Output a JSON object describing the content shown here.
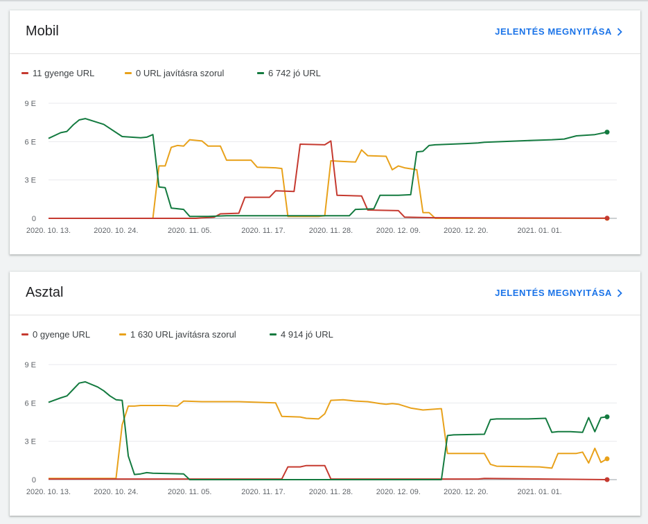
{
  "link_label": "JELENTÉS MEGNYITÁSA",
  "colors": {
    "poor": "#c5392f",
    "needs": "#e8a11a",
    "good": "#137a3f"
  },
  "icons": {
    "link": "chevron-right-icon"
  },
  "charts": [
    {
      "title": "Mobil",
      "legend": [
        {
          "key": "poor",
          "label": "11 gyenge URL"
        },
        {
          "key": "needs",
          "label": "0 URL javításra szorul"
        },
        {
          "key": "good",
          "label": "6 742 jó URL"
        }
      ]
    },
    {
      "title": "Asztal",
      "legend": [
        {
          "key": "poor",
          "label": "0 gyenge URL"
        },
        {
          "key": "needs",
          "label": "1 630 URL javításra szorul"
        },
        {
          "key": "good",
          "label": "4 914 jó URL"
        }
      ]
    }
  ],
  "chart_data": [
    {
      "type": "line",
      "title": "Mobil",
      "x_start": "2020-10-13",
      "x_end": "2021-01-12",
      "x_tick_labels": [
        "2020. 10. 13.",
        "2020. 10. 24.",
        "2020. 11. 05.",
        "2020. 11. 17.",
        "2020. 11. 28.",
        "2020. 12. 09.",
        "2020. 12. 20.",
        "2021. 01. 01."
      ],
      "y_tick_labels": [
        "0",
        "3 E",
        "6 E",
        "9 E"
      ],
      "ylim": [
        0,
        9000
      ],
      "grid": true,
      "legend_position": "top-left",
      "series": [
        {
          "name": "11 gyenge URL",
          "key": "poor",
          "points": [
            [
              "2020-10-13",
              0
            ],
            [
              "2020-10-31",
              0
            ],
            [
              "2020-11-06",
              0
            ],
            [
              "2020-11-09",
              100
            ],
            [
              "2020-11-10",
              350
            ],
            [
              "2020-11-13",
              400
            ],
            [
              "2020-11-14",
              1650
            ],
            [
              "2020-11-18",
              1650
            ],
            [
              "2020-11-19",
              2150
            ],
            [
              "2020-11-22",
              2100
            ],
            [
              "2020-11-23",
              5800
            ],
            [
              "2020-11-27",
              5750
            ],
            [
              "2020-11-28",
              6050
            ],
            [
              "2020-11-29",
              1800
            ],
            [
              "2020-12-03",
              1750
            ],
            [
              "2020-12-04",
              650
            ],
            [
              "2020-12-09",
              600
            ],
            [
              "2020-12-10",
              100
            ],
            [
              "2020-12-15",
              50
            ],
            [
              "2021-01-12",
              11
            ]
          ]
        },
        {
          "name": "0 URL javításra szorul",
          "key": "needs",
          "points": [
            [
              "2020-10-13",
              0
            ],
            [
              "2020-10-30",
              0
            ],
            [
              "2020-10-31",
              4100
            ],
            [
              "2020-11-01",
              4100
            ],
            [
              "2020-11-02",
              5550
            ],
            [
              "2020-11-03",
              5700
            ],
            [
              "2020-11-04",
              5650
            ],
            [
              "2020-11-05",
              6150
            ],
            [
              "2020-11-07",
              6050
            ],
            [
              "2020-11-08",
              5650
            ],
            [
              "2020-11-10",
              5650
            ],
            [
              "2020-11-11",
              4550
            ],
            [
              "2020-11-15",
              4550
            ],
            [
              "2020-11-16",
              4000
            ],
            [
              "2020-11-19",
              3950
            ],
            [
              "2020-11-20",
              3900
            ],
            [
              "2020-11-21",
              150
            ],
            [
              "2020-11-26",
              150
            ],
            [
              "2020-11-27",
              200
            ],
            [
              "2020-11-28",
              4500
            ],
            [
              "2020-12-02",
              4400
            ],
            [
              "2020-12-03",
              5350
            ],
            [
              "2020-12-04",
              4900
            ],
            [
              "2020-12-07",
              4850
            ],
            [
              "2020-12-08",
              3800
            ],
            [
              "2020-12-09",
              4100
            ],
            [
              "2020-12-10",
              3950
            ],
            [
              "2020-12-12",
              3800
            ],
            [
              "2020-12-13",
              450
            ],
            [
              "2020-12-14",
              450
            ],
            [
              "2020-12-15",
              0
            ],
            [
              "2021-01-12",
              0
            ]
          ]
        },
        {
          "name": "6 742 jó URL",
          "key": "good",
          "points": [
            [
              "2020-10-13",
              6250
            ],
            [
              "2020-10-15",
              6700
            ],
            [
              "2020-10-16",
              6800
            ],
            [
              "2020-10-17",
              7300
            ],
            [
              "2020-10-18",
              7700
            ],
            [
              "2020-10-19",
              7800
            ],
            [
              "2020-10-21",
              7500
            ],
            [
              "2020-10-22",
              7350
            ],
            [
              "2020-10-25",
              6400
            ],
            [
              "2020-10-28",
              6300
            ],
            [
              "2020-10-29",
              6350
            ],
            [
              "2020-10-30",
              6550
            ],
            [
              "2020-10-31",
              2450
            ],
            [
              "2020-11-01",
              2400
            ],
            [
              "2020-11-02",
              800
            ],
            [
              "2020-11-04",
              700
            ],
            [
              "2020-11-05",
              150
            ],
            [
              "2020-11-08",
              150
            ],
            [
              "2020-11-11",
              200
            ],
            [
              "2020-11-20",
              200
            ],
            [
              "2020-11-28",
              200
            ],
            [
              "2020-12-01",
              200
            ],
            [
              "2020-12-02",
              700
            ],
            [
              "2020-12-05",
              750
            ],
            [
              "2020-12-06",
              1800
            ],
            [
              "2020-12-09",
              1800
            ],
            [
              "2020-12-11",
              1850
            ],
            [
              "2020-12-12",
              5200
            ],
            [
              "2020-12-13",
              5250
            ],
            [
              "2020-12-14",
              5700
            ],
            [
              "2020-12-15",
              5750
            ],
            [
              "2020-12-20",
              5850
            ],
            [
              "2020-12-22",
              5900
            ],
            [
              "2020-12-23",
              5950
            ],
            [
              "2020-12-26",
              6000
            ],
            [
              "2020-12-31",
              6100
            ],
            [
              "2021-01-03",
              6150
            ],
            [
              "2021-01-05",
              6200
            ],
            [
              "2021-01-07",
              6450
            ],
            [
              "2021-01-10",
              6550
            ],
            [
              "2021-01-12",
              6742
            ]
          ]
        }
      ]
    },
    {
      "type": "line",
      "title": "Asztal",
      "x_start": "2020-10-13",
      "x_end": "2021-01-12",
      "x_tick_labels": [
        "2020. 10. 13.",
        "2020. 10. 24.",
        "2020. 11. 05.",
        "2020. 11. 17.",
        "2020. 11. 28.",
        "2020. 12. 09.",
        "2020. 12. 20.",
        "2021. 01. 01."
      ],
      "y_tick_labels": [
        "0",
        "3 E",
        "6 E",
        "9 E"
      ],
      "ylim": [
        0,
        9000
      ],
      "grid": true,
      "legend_position": "top-left",
      "series": [
        {
          "name": "0 gyenge URL",
          "key": "poor",
          "points": [
            [
              "2020-10-13",
              50
            ],
            [
              "2020-11-20",
              50
            ],
            [
              "2020-11-21",
              1000
            ],
            [
              "2020-11-23",
              1000
            ],
            [
              "2020-11-24",
              1100
            ],
            [
              "2020-11-27",
              1100
            ],
            [
              "2020-11-28",
              50
            ],
            [
              "2020-12-22",
              50
            ],
            [
              "2020-12-23",
              100
            ],
            [
              "2021-01-12",
              0
            ]
          ]
        },
        {
          "name": "1 630 URL javításra szorul",
          "key": "needs",
          "points": [
            [
              "2020-10-13",
              100
            ],
            [
              "2020-10-24",
              100
            ],
            [
              "2020-10-25",
              4300
            ],
            [
              "2020-10-26",
              5750
            ],
            [
              "2020-10-27",
              5750
            ],
            [
              "2020-10-28",
              5800
            ],
            [
              "2020-11-01",
              5800
            ],
            [
              "2020-11-03",
              5750
            ],
            [
              "2020-11-04",
              6150
            ],
            [
              "2020-11-07",
              6100
            ],
            [
              "2020-11-13",
              6100
            ],
            [
              "2020-11-19",
              6000
            ],
            [
              "2020-11-20",
              4950
            ],
            [
              "2020-11-23",
              4900
            ],
            [
              "2020-11-24",
              4800
            ],
            [
              "2020-11-26",
              4750
            ],
            [
              "2020-11-27",
              5150
            ],
            [
              "2020-11-28",
              6200
            ],
            [
              "2020-11-30",
              6250
            ],
            [
              "2020-12-02",
              6150
            ],
            [
              "2020-12-04",
              6100
            ],
            [
              "2020-12-06",
              5950
            ],
            [
              "2020-12-07",
              5900
            ],
            [
              "2020-12-08",
              5950
            ],
            [
              "2020-12-09",
              5900
            ],
            [
              "2020-12-11",
              5600
            ],
            [
              "2020-12-13",
              5450
            ],
            [
              "2020-12-16",
              5550
            ],
            [
              "2020-12-17",
              2050
            ],
            [
              "2020-12-23",
              2050
            ],
            [
              "2020-12-24",
              1200
            ],
            [
              "2020-12-25",
              1050
            ],
            [
              "2021-01-01",
              1000
            ],
            [
              "2021-01-03",
              900
            ],
            [
              "2021-01-04",
              2050
            ],
            [
              "2021-01-07",
              2050
            ],
            [
              "2021-01-08",
              2150
            ],
            [
              "2021-01-09",
              1300
            ],
            [
              "2021-01-10",
              2450
            ],
            [
              "2021-01-11",
              1350
            ],
            [
              "2021-01-12",
              1630
            ]
          ]
        },
        {
          "name": "4 914 jó URL",
          "key": "good",
          "points": [
            [
              "2020-10-13",
              6050
            ],
            [
              "2020-10-15",
              6400
            ],
            [
              "2020-10-16",
              6550
            ],
            [
              "2020-10-17",
              7050
            ],
            [
              "2020-10-18",
              7550
            ],
            [
              "2020-10-19",
              7650
            ],
            [
              "2020-10-21",
              7250
            ],
            [
              "2020-10-22",
              6950
            ],
            [
              "2020-10-23",
              6550
            ],
            [
              "2020-10-24",
              6250
            ],
            [
              "2020-10-25",
              6200
            ],
            [
              "2020-10-26",
              1850
            ],
            [
              "2020-10-27",
              400
            ],
            [
              "2020-10-28",
              450
            ],
            [
              "2020-10-29",
              550
            ],
            [
              "2020-10-30",
              500
            ],
            [
              "2020-11-04",
              450
            ],
            [
              "2020-11-05",
              0
            ],
            [
              "2020-12-16",
              0
            ],
            [
              "2020-12-17",
              3450
            ],
            [
              "2020-12-18",
              3500
            ],
            [
              "2020-12-23",
              3550
            ],
            [
              "2020-12-24",
              4700
            ],
            [
              "2020-12-25",
              4750
            ],
            [
              "2020-12-30",
              4750
            ],
            [
              "2021-01-02",
              4800
            ],
            [
              "2021-01-03",
              3700
            ],
            [
              "2021-01-04",
              3750
            ],
            [
              "2021-01-06",
              3750
            ],
            [
              "2021-01-08",
              3700
            ],
            [
              "2021-01-09",
              4850
            ],
            [
              "2021-01-10",
              3750
            ],
            [
              "2021-01-11",
              4850
            ],
            [
              "2021-01-12",
              4914
            ]
          ]
        }
      ]
    }
  ]
}
